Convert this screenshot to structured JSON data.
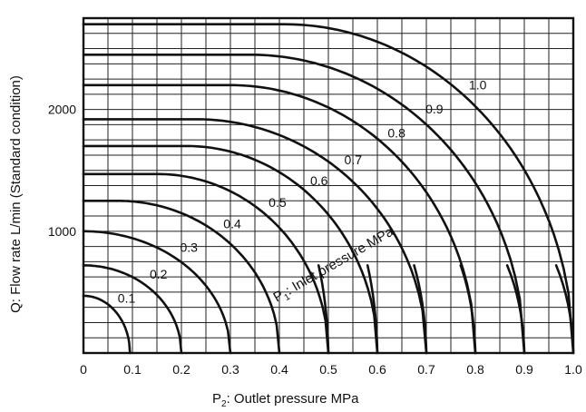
{
  "chart_data": {
    "type": "line",
    "title": "",
    "xlabel": {
      "prefix": "P",
      "sub": "2",
      "text": ": Outlet pressure    MPa"
    },
    "ylabel": "Q: Flow rate    L/min (Standard condition)",
    "xlim": [
      0,
      1.0
    ],
    "ylim": [
      0,
      2750
    ],
    "x_ticks": [
      "0",
      "0.1",
      "0.2",
      "0.3",
      "0.4",
      "0.5",
      "0.6",
      "0.7",
      "0.8",
      "0.9",
      "1.0"
    ],
    "y_ticks": [
      {
        "value": 1000,
        "label": "1000"
      },
      {
        "value": 2000,
        "label": "2000"
      }
    ],
    "grid": true,
    "annotation": {
      "prefix": "P",
      "sub": "1",
      "text": ": Inlet pressure    MPa"
    },
    "series": [
      {
        "name": "0.1",
        "inlet": 0.1,
        "q_max": 470,
        "plateau_end": 0.0,
        "end": 0.095,
        "vertical_from": 0.09
      },
      {
        "name": "0.2",
        "inlet": 0.2,
        "q_max": 720,
        "plateau_end": 0.0,
        "end": 0.2,
        "vertical_from": 0.19
      },
      {
        "name": "0.3",
        "inlet": 0.3,
        "q_max": 1000,
        "plateau_end": 0.0,
        "end": 0.3,
        "vertical_from": 0.29
      },
      {
        "name": "0.4",
        "inlet": 0.4,
        "q_max": 1250,
        "plateau_end": 0.07,
        "end": 0.4,
        "vertical_from": 0.39
      },
      {
        "name": "0.5",
        "inlet": 0.5,
        "q_max": 1470,
        "plateau_end": 0.15,
        "end": 0.5,
        "vertical_from": 0.48
      },
      {
        "name": "0.6",
        "inlet": 0.6,
        "q_max": 1700,
        "plateau_end": 0.21,
        "end": 0.6,
        "vertical_from": 0.58
      },
      {
        "name": "0.7",
        "inlet": 0.7,
        "q_max": 1920,
        "plateau_end": 0.23,
        "end": 0.7,
        "vertical_from": 0.675
      },
      {
        "name": "0.8",
        "inlet": 0.8,
        "q_max": 2200,
        "plateau_end": 0.3,
        "end": 0.8,
        "vertical_from": 0.77
      },
      {
        "name": "0.9",
        "inlet": 0.9,
        "q_max": 2450,
        "plateau_end": 0.34,
        "end": 0.9,
        "vertical_from": 0.865
      },
      {
        "name": "1.0",
        "inlet": 1.0,
        "q_max": 2700,
        "plateau_end": 0.41,
        "end": 1.0,
        "vertical_from": 0.965
      }
    ]
  }
}
